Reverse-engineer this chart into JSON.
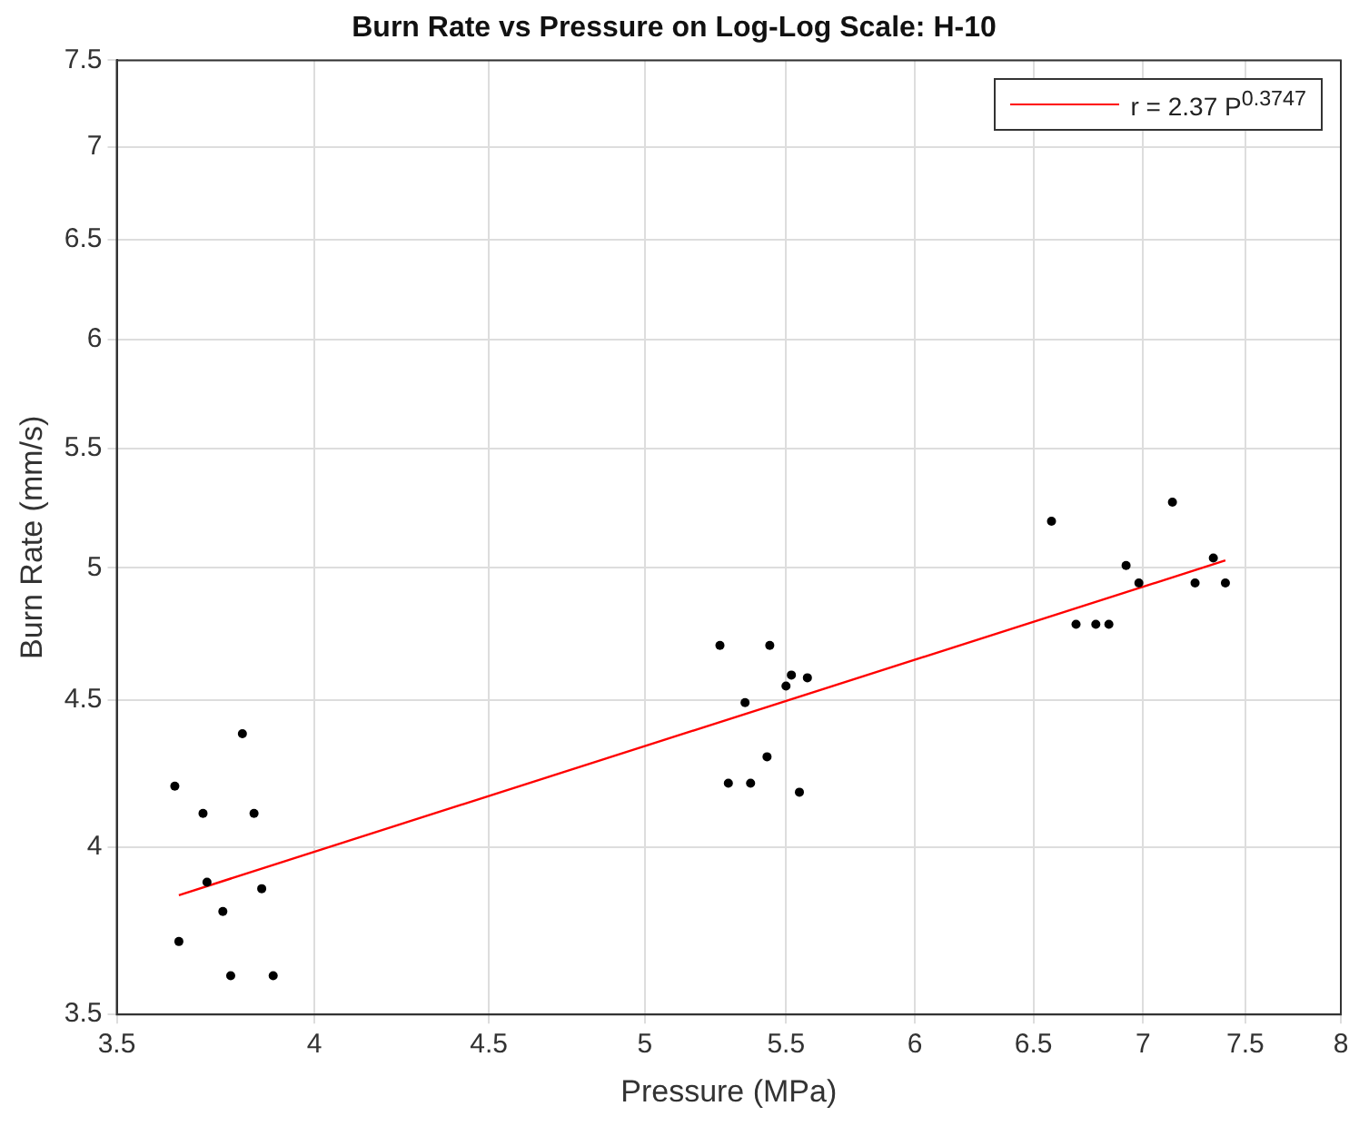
{
  "chart_data": {
    "type": "scatter",
    "title": "Burn Rate vs Pressure on Log-Log Scale: H-10",
    "xlabel": "Pressure (MPa)",
    "ylabel": "Burn Rate (mm/s)",
    "log": "xy",
    "grid": true,
    "legend": "top right",
    "marker": "circle",
    "xlim": [
      3.5,
      8
    ],
    "xticks": [
      3.5,
      4,
      4.5,
      5,
      5.5,
      6,
      6.5,
      7,
      7.5,
      8
    ],
    "ylim": [
      3.5,
      7.5
    ],
    "yticks": [
      3.5,
      4,
      4.5,
      5,
      5.5,
      6,
      6.5,
      7,
      7.5
    ],
    "series": [
      {
        "color": "#000000",
        "x": [
          3.64,
          3.71,
          3.81,
          3.84,
          3.72,
          3.86,
          3.76,
          3.65,
          3.78,
          3.89,
          5.26,
          5.44,
          5.52,
          5.58,
          5.5,
          5.35,
          5.43,
          5.29,
          5.37,
          5.55,
          6.58,
          7.14,
          6.92,
          7.34,
          6.98,
          7.25,
          7.4,
          6.69,
          6.78,
          6.84
        ],
        "values": [
          4.2,
          4.11,
          4.38,
          4.11,
          3.89,
          3.87,
          3.8,
          3.71,
          3.61,
          3.61,
          4.7,
          4.7,
          4.59,
          4.58,
          4.55,
          4.49,
          4.3,
          4.21,
          4.21,
          4.18,
          5.19,
          5.27,
          5.01,
          5.04,
          4.94,
          4.94,
          4.94,
          4.78,
          4.78,
          4.78
        ]
      },
      {
        "type": "line",
        "name": "r = 2.37 P$^{0.3747}$",
        "color": "#ff0000",
        "marker": "none",
        "line_style": "solid",
        "x": [
          3.65,
          7.4
        ],
        "values": [
          3.85,
          5.03
        ]
      }
    ]
  }
}
